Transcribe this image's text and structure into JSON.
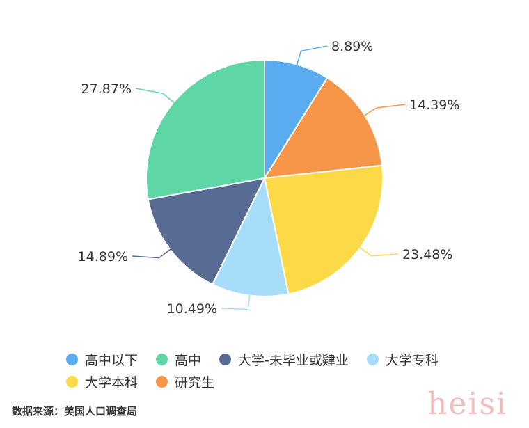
{
  "chart_data": {
    "type": "pie",
    "start_angle_deg": 0,
    "direction": "clockwise",
    "categories": [
      "高中以下",
      "研究生",
      "大学本科",
      "大学专科",
      "大学-未毕业或肄业",
      "高中"
    ],
    "values": [
      8.89,
      14.39,
      23.48,
      10.49,
      14.89,
      27.87
    ],
    "labels": [
      "8.89%",
      "14.39%",
      "23.48%",
      "10.49%",
      "14.89%",
      "27.87%"
    ],
    "colors": [
      "#5aabf0",
      "#f79648",
      "#fbd947",
      "#a8ddfa",
      "#586b92",
      "#5fd6a6"
    ],
    "legend_placement": "bottom"
  },
  "legend": [
    {
      "label": "高中以下",
      "color": "#5aabf0"
    },
    {
      "label": "高中",
      "color": "#5fd6a6"
    },
    {
      "label": "大学-未毕业或肄业",
      "color": "#586b92"
    },
    {
      "label": "大学专科",
      "color": "#a8ddfa"
    },
    {
      "label": "大学本科",
      "color": "#fbd947"
    },
    {
      "label": "研究生",
      "color": "#f79648"
    }
  ],
  "source": "数据来源：美国人口调查局",
  "watermark": "heisi"
}
